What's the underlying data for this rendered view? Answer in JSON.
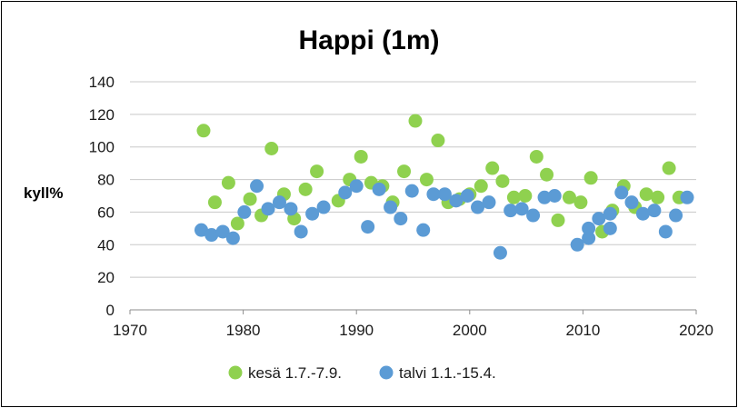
{
  "chart_data": {
    "type": "scatter",
    "title": "Happi (1m)",
    "ylabel": "kyll%",
    "xlabel": "",
    "xlim": [
      1970,
      2020
    ],
    "ylim": [
      0,
      140
    ],
    "xticks": [
      1970,
      1980,
      1990,
      2000,
      2010,
      2020
    ],
    "yticks": [
      0,
      20,
      40,
      60,
      80,
      100,
      120,
      140
    ],
    "grid": "horizontal",
    "legend_position": "bottom",
    "series": [
      {
        "name": "kesä 1.7.-7.9.",
        "color": "#8fd14f",
        "points": [
          [
            1976.5,
            110
          ],
          [
            1977.5,
            66
          ],
          [
            1978.7,
            78
          ],
          [
            1979.5,
            53
          ],
          [
            1980.6,
            68
          ],
          [
            1981.6,
            58
          ],
          [
            1982.5,
            99
          ],
          [
            1983.6,
            71
          ],
          [
            1984.5,
            56
          ],
          [
            1985.5,
            74
          ],
          [
            1986.5,
            85
          ],
          [
            1988.4,
            67
          ],
          [
            1989.4,
            80
          ],
          [
            1990.4,
            94
          ],
          [
            1991.3,
            78
          ],
          [
            1992.3,
            76
          ],
          [
            1993.2,
            66
          ],
          [
            1994.2,
            85
          ],
          [
            1995.2,
            116
          ],
          [
            1996.2,
            80
          ],
          [
            1997.2,
            104
          ],
          [
            1998.1,
            66
          ],
          [
            1999.1,
            68
          ],
          [
            2000.0,
            71
          ],
          [
            2001.0,
            76
          ],
          [
            2002.0,
            87
          ],
          [
            2002.9,
            79
          ],
          [
            2003.9,
            69
          ],
          [
            2004.9,
            70
          ],
          [
            2005.9,
            94
          ],
          [
            2006.8,
            83
          ],
          [
            2007.8,
            55
          ],
          [
            2008.8,
            69
          ],
          [
            2009.8,
            66
          ],
          [
            2010.7,
            81
          ],
          [
            2011.7,
            48
          ],
          [
            2012.6,
            61
          ],
          [
            2013.6,
            76
          ],
          [
            2014.6,
            63
          ],
          [
            2015.6,
            71
          ],
          [
            2016.6,
            69
          ],
          [
            2017.6,
            87
          ],
          [
            2018.5,
            69
          ]
        ]
      },
      {
        "name": "talvi 1.1.-15.4.",
        "color": "#5b9bd5",
        "points": [
          [
            1976.3,
            49
          ],
          [
            1977.2,
            46
          ],
          [
            1978.2,
            48
          ],
          [
            1979.1,
            44
          ],
          [
            1980.1,
            60
          ],
          [
            1981.2,
            76
          ],
          [
            1982.2,
            62
          ],
          [
            1983.2,
            66
          ],
          [
            1984.2,
            62
          ],
          [
            1985.1,
            48
          ],
          [
            1986.1,
            59
          ],
          [
            1987.1,
            63
          ],
          [
            1989.0,
            72
          ],
          [
            1990.0,
            76
          ],
          [
            1991.0,
            51
          ],
          [
            1992.0,
            74
          ],
          [
            1993.0,
            63
          ],
          [
            1993.9,
            56
          ],
          [
            1994.9,
            73
          ],
          [
            1995.9,
            49
          ],
          [
            1996.8,
            71
          ],
          [
            1997.8,
            71
          ],
          [
            1998.8,
            67
          ],
          [
            1999.8,
            70
          ],
          [
            2000.7,
            63
          ],
          [
            2001.7,
            66
          ],
          [
            2002.7,
            35
          ],
          [
            2003.6,
            61
          ],
          [
            2004.6,
            62
          ],
          [
            2005.6,
            58
          ],
          [
            2006.6,
            69
          ],
          [
            2007.5,
            70
          ],
          [
            2009.5,
            40
          ],
          [
            2010.5,
            44
          ],
          [
            2010.5,
            50
          ],
          [
            2011.4,
            56
          ],
          [
            2012.4,
            50
          ],
          [
            2012.4,
            59
          ],
          [
            2013.4,
            72
          ],
          [
            2014.3,
            66
          ],
          [
            2015.3,
            59
          ],
          [
            2016.3,
            61
          ],
          [
            2017.3,
            48
          ],
          [
            2018.2,
            58
          ],
          [
            2019.2,
            69
          ]
        ]
      }
    ]
  }
}
